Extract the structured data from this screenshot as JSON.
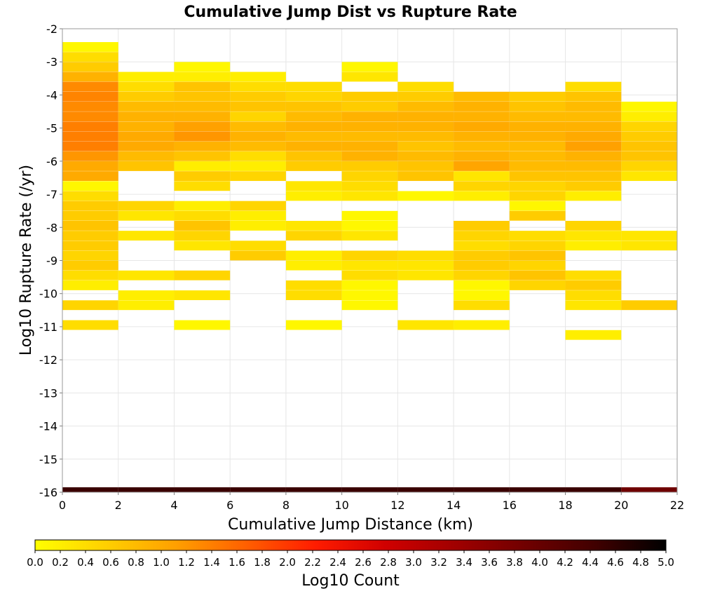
{
  "chart_data": {
    "type": "heatmap",
    "title": "Cumulative Jump Dist vs Rupture Rate",
    "xlabel": "Cumulative Jump Distance (km)",
    "ylabel": "Log10 Rupture Rate (/yr)",
    "xlim": [
      0,
      22
    ],
    "ylim": [
      -16,
      -2
    ],
    "x_ticks": [
      0,
      2,
      4,
      6,
      8,
      10,
      12,
      14,
      16,
      18,
      20,
      22
    ],
    "y_ticks": [
      -2,
      -3,
      -4,
      -5,
      -6,
      -7,
      -8,
      -9,
      -10,
      -11,
      -12,
      -13,
      -14,
      -15,
      -16
    ],
    "bin_width_x": 2,
    "bin_height_y": 0.2941,
    "grid": true,
    "colorbar": {
      "label": "Log10 Count",
      "min": 0.0,
      "max": 5.0,
      "ticks": [
        "0.0",
        "0.2",
        "0.4",
        "0.6",
        "0.8",
        "1.0",
        "1.2",
        "1.4",
        "1.6",
        "1.8",
        "2.0",
        "2.2",
        "2.4",
        "2.6",
        "2.8",
        "3.0",
        "3.2",
        "3.4",
        "3.6",
        "3.8",
        "4.0",
        "4.2",
        "4.4",
        "4.6",
        "4.8",
        "5.0"
      ],
      "colors": [
        "#ffff00",
        "#ffd000",
        "#ffa000",
        "#ff6000",
        "#ff1c00",
        "#d00000",
        "#a00000",
        "#700000",
        "#400000",
        "#000000"
      ]
    },
    "columns": [
      {
        "x_start": 0,
        "cells": [
          [
            -2.55,
            0.1
          ],
          [
            -2.85,
            0.4
          ],
          [
            -3.15,
            0.6
          ],
          [
            -3.45,
            0.9
          ],
          [
            -3.75,
            1.3
          ],
          [
            -4.05,
            1.35
          ],
          [
            -4.35,
            1.3
          ],
          [
            -4.65,
            1.3
          ],
          [
            -4.95,
            1.4
          ],
          [
            -5.25,
            1.4
          ],
          [
            -5.55,
            1.4
          ],
          [
            -5.85,
            1.2
          ],
          [
            -6.15,
            1.0
          ],
          [
            -6.45,
            1.0
          ],
          [
            -6.75,
            0.1
          ],
          [
            -7.05,
            0.4
          ],
          [
            -7.35,
            0.6
          ],
          [
            -7.65,
            0.6
          ],
          [
            -7.95,
            0.7
          ],
          [
            -8.25,
            0.6
          ],
          [
            -8.55,
            0.6
          ],
          [
            -8.85,
            0.5
          ],
          [
            -9.15,
            0.6
          ],
          [
            -9.45,
            0.4
          ],
          [
            -9.75,
            0.2
          ],
          [
            -10.35,
            0.5
          ],
          [
            -10.95,
            0.4
          ]
        ]
      },
      {
        "x_start": 2,
        "cells": [
          [
            -3.45,
            0.2
          ],
          [
            -3.75,
            0.4
          ],
          [
            -4.05,
            0.6
          ],
          [
            -4.35,
            0.8
          ],
          [
            -4.65,
            0.9
          ],
          [
            -4.95,
            0.9
          ],
          [
            -5.25,
            1.0
          ],
          [
            -5.55,
            1.0
          ],
          [
            -5.85,
            0.8
          ],
          [
            -6.15,
            0.7
          ],
          [
            -7.35,
            0.5
          ],
          [
            -7.65,
            0.3
          ],
          [
            -8.25,
            0.3
          ],
          [
            -9.45,
            0.3
          ],
          [
            -10.05,
            0.2
          ],
          [
            -10.35,
            0.2
          ]
        ]
      },
      {
        "x_start": 4,
        "cells": [
          [
            -3.15,
            0.1
          ],
          [
            -3.45,
            0.2
          ],
          [
            -3.75,
            0.7
          ],
          [
            -4.05,
            0.7
          ],
          [
            -4.35,
            0.8
          ],
          [
            -4.65,
            0.9
          ],
          [
            -4.95,
            1.1
          ],
          [
            -5.25,
            1.2
          ],
          [
            -5.55,
            0.9
          ],
          [
            -5.85,
            0.7
          ],
          [
            -6.15,
            0.2
          ],
          [
            -6.45,
            0.6
          ],
          [
            -6.75,
            0.4
          ],
          [
            -7.35,
            0.2
          ],
          [
            -7.65,
            0.4
          ],
          [
            -7.95,
            0.7
          ],
          [
            -8.25,
            0.5
          ],
          [
            -8.55,
            0.3
          ],
          [
            -9.45,
            0.5
          ],
          [
            -10.05,
            0.3
          ],
          [
            -10.95,
            0.1
          ]
        ]
      },
      {
        "x_start": 6,
        "cells": [
          [
            -3.45,
            0.2
          ],
          [
            -3.75,
            0.4
          ],
          [
            -4.05,
            0.6
          ],
          [
            -4.35,
            0.7
          ],
          [
            -4.65,
            0.5
          ],
          [
            -4.95,
            0.8
          ],
          [
            -5.25,
            0.9
          ],
          [
            -5.55,
            0.8
          ],
          [
            -5.85,
            0.4
          ],
          [
            -6.15,
            0.2
          ],
          [
            -6.45,
            0.5
          ],
          [
            -7.35,
            0.5
          ],
          [
            -7.65,
            0.2
          ],
          [
            -7.95,
            0.2
          ],
          [
            -8.55,
            0.4
          ],
          [
            -8.85,
            0.6
          ]
        ]
      },
      {
        "x_start": 8,
        "cells": [
          [
            -3.75,
            0.4
          ],
          [
            -4.05,
            0.5
          ],
          [
            -4.35,
            0.7
          ],
          [
            -4.65,
            0.8
          ],
          [
            -4.95,
            0.9
          ],
          [
            -5.25,
            0.8
          ],
          [
            -5.55,
            0.9
          ],
          [
            -5.85,
            0.7
          ],
          [
            -6.15,
            0.6
          ],
          [
            -6.75,
            0.3
          ],
          [
            -7.05,
            0.2
          ],
          [
            -7.95,
            0.3
          ],
          [
            -8.25,
            0.5
          ],
          [
            -8.85,
            0.2
          ],
          [
            -9.15,
            0.2
          ],
          [
            -9.75,
            0.4
          ],
          [
            -10.05,
            0.4
          ],
          [
            -10.95,
            0.1
          ]
        ]
      },
      {
        "x_start": 10,
        "cells": [
          [
            -3.15,
            0.1
          ],
          [
            -3.45,
            0.3
          ],
          [
            -4.05,
            0.6
          ],
          [
            -4.35,
            0.6
          ],
          [
            -4.65,
            0.9
          ],
          [
            -4.95,
            0.9
          ],
          [
            -5.25,
            0.8
          ],
          [
            -5.55,
            0.9
          ],
          [
            -5.85,
            0.9
          ],
          [
            -6.15,
            0.6
          ],
          [
            -6.45,
            0.5
          ],
          [
            -6.75,
            0.4
          ],
          [
            -7.05,
            0.3
          ],
          [
            -7.65,
            0.1
          ],
          [
            -7.95,
            0.1
          ],
          [
            -8.25,
            0.3
          ],
          [
            -8.85,
            0.5
          ],
          [
            -9.15,
            0.3
          ],
          [
            -9.45,
            0.4
          ],
          [
            -9.75,
            0.1
          ],
          [
            -10.05,
            0.1
          ],
          [
            -10.35,
            0.1
          ]
        ]
      },
      {
        "x_start": 12,
        "cells": [
          [
            -3.75,
            0.4
          ],
          [
            -4.05,
            0.6
          ],
          [
            -4.35,
            0.8
          ],
          [
            -4.65,
            0.9
          ],
          [
            -4.95,
            0.9
          ],
          [
            -5.25,
            0.8
          ],
          [
            -5.55,
            0.7
          ],
          [
            -5.85,
            0.8
          ],
          [
            -6.15,
            0.7
          ],
          [
            -6.45,
            0.7
          ],
          [
            -7.05,
            0.1
          ],
          [
            -8.85,
            0.4
          ],
          [
            -9.15,
            0.3
          ],
          [
            -9.45,
            0.3
          ],
          [
            -10.95,
            0.3
          ]
        ]
      },
      {
        "x_start": 14,
        "cells": [
          [
            -4.05,
            0.8
          ],
          [
            -4.35,
            0.9
          ],
          [
            -4.65,
            0.9
          ],
          [
            -4.95,
            1.0
          ],
          [
            -5.25,
            0.9
          ],
          [
            -5.55,
            0.8
          ],
          [
            -5.85,
            0.9
          ],
          [
            -6.15,
            1.05
          ],
          [
            -6.45,
            0.3
          ],
          [
            -6.75,
            0.5
          ],
          [
            -7.05,
            0.2
          ],
          [
            -7.95,
            0.6
          ],
          [
            -8.25,
            0.5
          ],
          [
            -8.55,
            0.4
          ],
          [
            -8.85,
            0.6
          ],
          [
            -9.15,
            0.6
          ],
          [
            -9.45,
            0.5
          ],
          [
            -9.75,
            0.1
          ],
          [
            -10.05,
            0.1
          ],
          [
            -10.35,
            0.4
          ],
          [
            -10.95,
            0.2
          ]
        ]
      },
      {
        "x_start": 16,
        "cells": [
          [
            -4.05,
            0.6
          ],
          [
            -4.35,
            0.7
          ],
          [
            -4.65,
            0.8
          ],
          [
            -4.95,
            0.9
          ],
          [
            -5.25,
            0.9
          ],
          [
            -5.55,
            0.8
          ],
          [
            -5.85,
            0.8
          ],
          [
            -6.15,
            0.8
          ],
          [
            -6.45,
            0.7
          ],
          [
            -6.75,
            0.5
          ],
          [
            -7.05,
            0.5
          ],
          [
            -7.35,
            0.1
          ],
          [
            -7.65,
            0.6
          ],
          [
            -8.25,
            0.4
          ],
          [
            -8.55,
            0.5
          ],
          [
            -8.85,
            0.7
          ],
          [
            -9.15,
            0.5
          ],
          [
            -9.45,
            0.7
          ],
          [
            -9.75,
            0.5
          ]
        ]
      },
      {
        "x_start": 18,
        "cells": [
          [
            -3.75,
            0.4
          ],
          [
            -4.05,
            0.7
          ],
          [
            -4.35,
            0.8
          ],
          [
            -4.65,
            0.8
          ],
          [
            -4.95,
            0.9
          ],
          [
            -5.25,
            1.0
          ],
          [
            -5.55,
            1.1
          ],
          [
            -5.85,
            0.9
          ],
          [
            -6.15,
            0.8
          ],
          [
            -6.45,
            0.7
          ],
          [
            -6.75,
            0.6
          ],
          [
            -7.05,
            0.2
          ],
          [
            -7.95,
            0.5
          ],
          [
            -8.25,
            0.3
          ],
          [
            -8.55,
            0.2
          ],
          [
            -9.45,
            0.4
          ],
          [
            -9.75,
            0.6
          ],
          [
            -10.05,
            0.4
          ],
          [
            -10.35,
            0.3
          ],
          [
            -11.25,
            0.2
          ]
        ]
      },
      {
        "x_start": 20,
        "cells": [
          [
            -4.35,
            0.1
          ],
          [
            -4.65,
            0.2
          ],
          [
            -4.95,
            0.5
          ],
          [
            -5.25,
            0.6
          ],
          [
            -5.55,
            0.7
          ],
          [
            -5.85,
            0.7
          ],
          [
            -6.15,
            0.5
          ],
          [
            -6.45,
            0.3
          ],
          [
            -8.25,
            0.3
          ],
          [
            -8.55,
            0.3
          ],
          [
            -10.35,
            0.6
          ]
        ]
      }
    ],
    "bottom_strip": {
      "y_start": -16,
      "y_end": -15.85,
      "values": [
        4.5,
        4.5,
        4.5,
        4.5,
        4.5,
        4.5,
        4.5,
        4.5,
        4.5,
        4.5,
        3.9
      ]
    }
  }
}
